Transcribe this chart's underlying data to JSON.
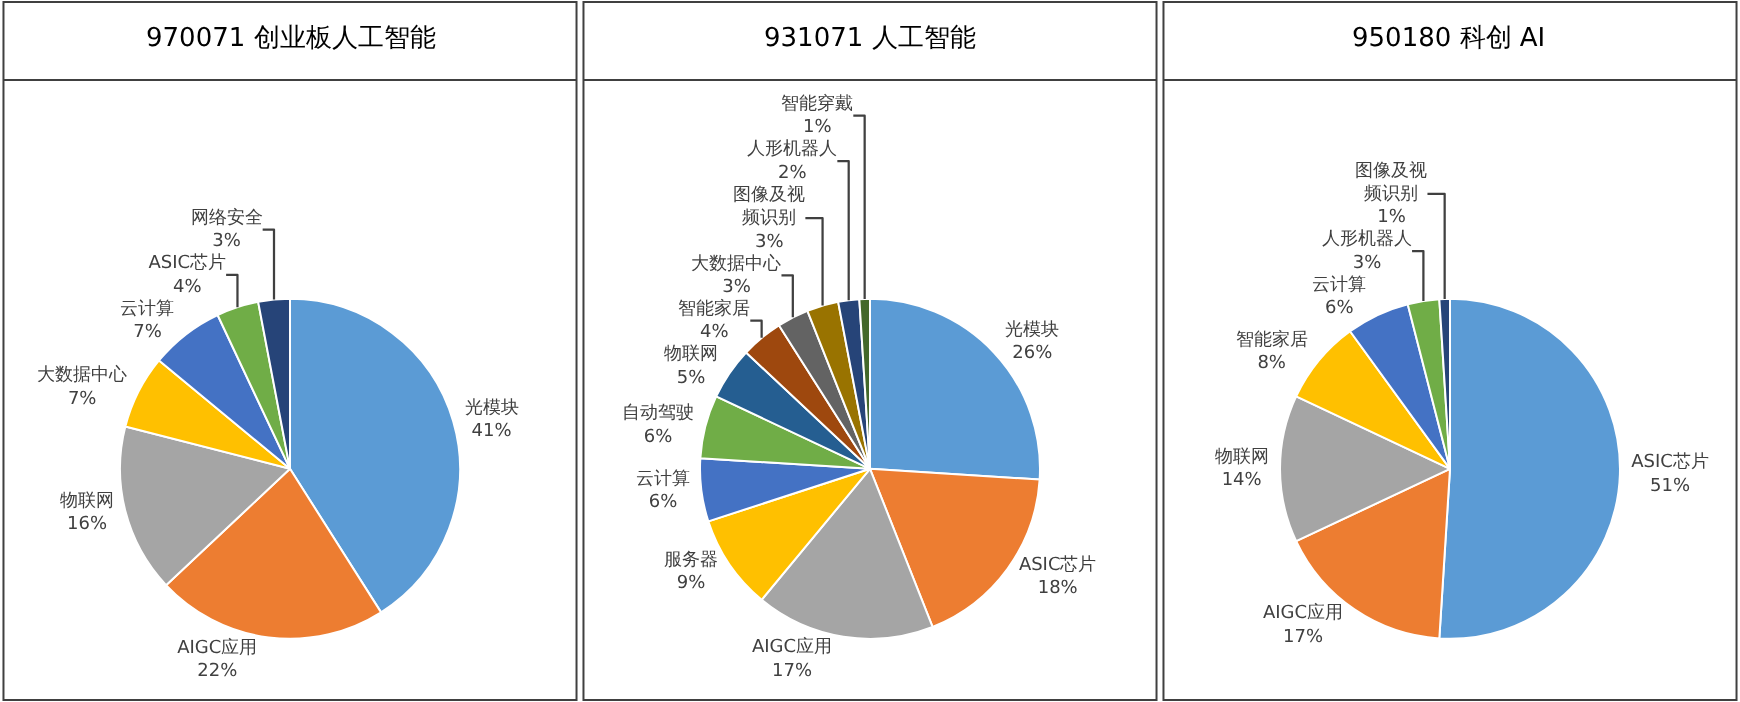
{
  "chart_data": [
    {
      "type": "pie",
      "title": "970071 创业板人工智能",
      "categories": [
        "光模块",
        "AIGC应用",
        "物联网",
        "大数据中心",
        "云计算",
        "ASIC芯片",
        "网络安全"
      ],
      "values": [
        41,
        22,
        16,
        7,
        7,
        4,
        3
      ],
      "value_labels": [
        "41%",
        "22%",
        "16%",
        "7%",
        "7%",
        "4%",
        "3%"
      ],
      "colors": [
        "#5b9bd5",
        "#ed7d31",
        "#a5a5a5",
        "#ffc000",
        "#4472c4",
        "#70ad47",
        "#264478"
      ]
    },
    {
      "type": "pie",
      "title": "931071 人工智能",
      "categories": [
        "光模块",
        "ASIC芯片",
        "AIGC应用",
        "服务器",
        "云计算",
        "自动驾驶",
        "物联网",
        "智能家居",
        "大数据中心",
        "图像及视频识别",
        "人形机器人",
        "智能穿戴"
      ],
      "values": [
        26,
        18,
        17,
        9,
        6,
        6,
        5,
        4,
        3,
        3,
        2,
        1
      ],
      "value_labels": [
        "26%",
        "18%",
        "17%",
        "9%",
        "6%",
        "6%",
        "5%",
        "4%",
        "3%",
        "3%",
        "2%",
        "1%"
      ],
      "colors": [
        "#5b9bd5",
        "#ed7d31",
        "#a5a5a5",
        "#ffc000",
        "#4472c4",
        "#70ad47",
        "#255e91",
        "#9e480e",
        "#636363",
        "#997300",
        "#264478",
        "#43682b"
      ]
    },
    {
      "type": "pie",
      "title": "950180 科创 AI",
      "categories": [
        "ASIC芯片",
        "AIGC应用",
        "物联网",
        "智能家居",
        "云计算",
        "人形机器人",
        "图像及视频识别"
      ],
      "values": [
        51,
        17,
        14,
        8,
        6,
        3,
        1
      ],
      "value_labels": [
        "51%",
        "17%",
        "14%",
        "8%",
        "6%",
        "3%",
        "1%"
      ],
      "colors": [
        "#5b9bd5",
        "#ed7d31",
        "#a5a5a5",
        "#ffc000",
        "#4472c4",
        "#70ad47",
        "#264478"
      ]
    }
  ]
}
